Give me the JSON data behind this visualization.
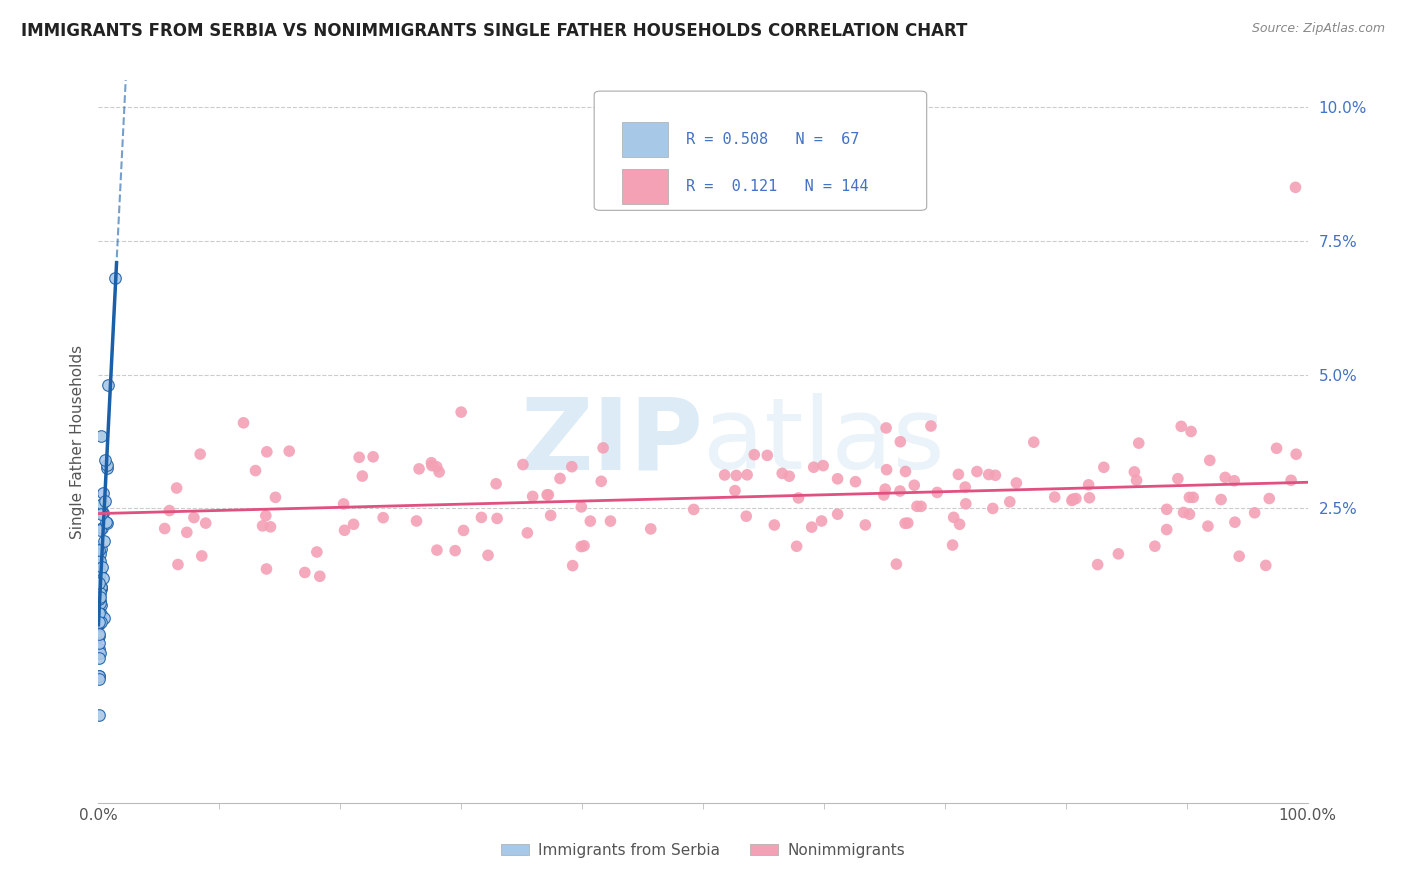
{
  "title": "IMMIGRANTS FROM SERBIA VS NONIMMIGRANTS SINGLE FATHER HOUSEHOLDS CORRELATION CHART",
  "source": "Source: ZipAtlas.com",
  "ylabel": "Single Father Households",
  "series1_name": "Immigrants from Serbia",
  "series1_color": "#a8c8e8",
  "series1_line_color": "#1a5fa8",
  "series1_R": 0.508,
  "series1_N": 67,
  "series2_name": "Nonimmigrants",
  "series2_color": "#f4a0b5",
  "series2_line_color": "#e05080",
  "series2_R": 0.121,
  "series2_N": 144,
  "xmin": 0.0,
  "xmax": 1.0,
  "ymin": -0.03,
  "ymax": 0.105,
  "yticks": [
    0.025,
    0.05,
    0.075,
    0.1
  ],
  "ytick_labels": [
    "2.5%",
    "5.0%",
    "7.5%",
    "10.0%"
  ],
  "background_color": "#ffffff",
  "grid_color": "#cccccc",
  "watermark_zip": "ZIP",
  "watermark_atlas": "atlas",
  "legend_R_color": "#4472c4",
  "title_fontsize": 12,
  "axis_label_fontsize": 11,
  "tick_fontsize": 11,
  "legend_fontsize": 11
}
